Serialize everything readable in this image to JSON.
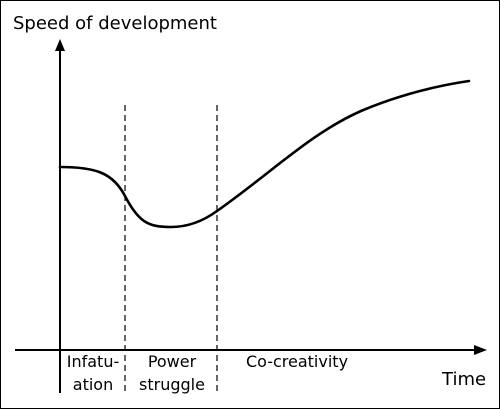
{
  "chart_data": {
    "type": "line",
    "ylabel": "Speed of development",
    "xlabel": "Time",
    "phases": [
      {
        "name": "infatuation",
        "lines": [
          "Infatu-",
          "ation"
        ]
      },
      {
        "name": "power-struggle",
        "lines": [
          "Power",
          "struggle"
        ]
      },
      {
        "name": "co-creativity",
        "lines": [
          "Co-creativity"
        ]
      }
    ],
    "phase_boundaries": [
      "infatuation|power-struggle",
      "power-struggle|co-creativity"
    ],
    "grid": false,
    "legend": "none",
    "curve": "starts at mid height, dips to a minimum during the power struggle, then rises steadily through co-creativity"
  }
}
